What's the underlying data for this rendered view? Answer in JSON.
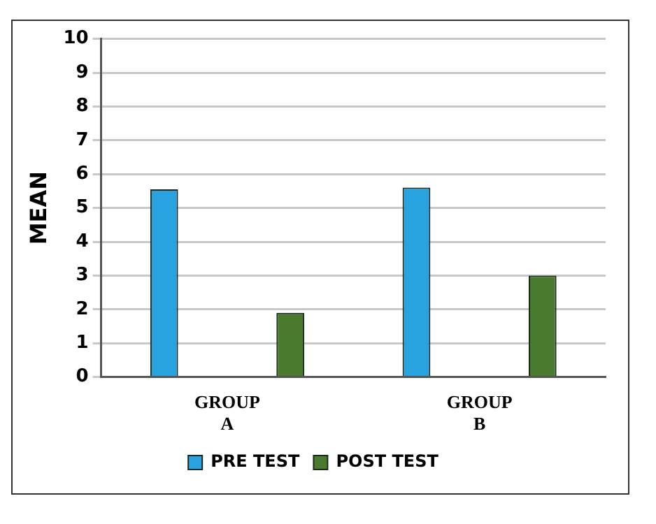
{
  "chart_data": {
    "type": "bar",
    "ylabel": "MEAN",
    "categories": [
      "GROUP A",
      "GROUP B"
    ],
    "series": [
      {
        "name": "PRE TEST",
        "color": "#29a3e0",
        "values": [
          5.55,
          5.6
        ]
      },
      {
        "name": "POST TEST",
        "color": "#4a7a2e",
        "values": [
          1.9,
          3.0
        ]
      }
    ],
    "ylim": [
      0,
      10
    ],
    "yticks": [
      0,
      1,
      2,
      3,
      4,
      5,
      6,
      7,
      8,
      9,
      10
    ],
    "grid": "y",
    "legend": "bottom"
  }
}
